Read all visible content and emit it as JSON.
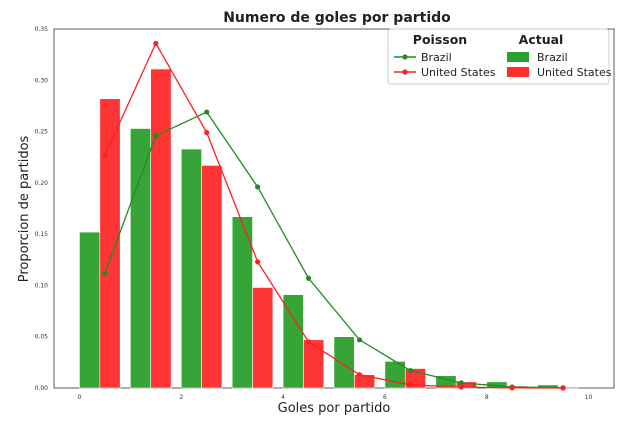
{
  "chart_data": {
    "type": "bar",
    "title": "Numero de goles por partido",
    "xlabel": "Goles por partido",
    "ylabel": "Proporcion de partidos",
    "xlim": [
      -0.5,
      10.5
    ],
    "ylim": [
      0,
      0.35
    ],
    "x_ticks": [
      0,
      2,
      4,
      6,
      8,
      10
    ],
    "y_ticks": [
      0.0,
      0.05,
      0.1,
      0.15,
      0.2,
      0.25,
      0.3,
      0.35
    ],
    "grid": false,
    "legend_position": "top-right",
    "legend": {
      "poisson_title": "Poisson",
      "actual_title": "Actual"
    },
    "bar_series": [
      {
        "name": "Brazil",
        "group": "Actual",
        "color": "#2ca02c",
        "x": [
          0,
          1,
          2,
          3,
          4,
          5,
          6,
          7,
          8,
          9
        ],
        "values": [
          0.152,
          0.253,
          0.233,
          0.167,
          0.091,
          0.05,
          0.026,
          0.012,
          0.006,
          0.003
        ]
      },
      {
        "name": "United States",
        "group": "Actual",
        "color": "#ff2a2a",
        "x": [
          0,
          1,
          2,
          3,
          4,
          5,
          6,
          7,
          8,
          9
        ],
        "values": [
          0.282,
          0.311,
          0.217,
          0.098,
          0.047,
          0.013,
          0.019,
          0.006,
          0.002,
          0.001
        ]
      }
    ],
    "line_series": [
      {
        "name": "Brazil",
        "group": "Poisson",
        "color": "#228b22",
        "x": [
          0,
          1,
          2,
          3,
          4,
          5,
          6,
          7,
          8,
          9
        ],
        "values": [
          0.112,
          0.246,
          0.269,
          0.196,
          0.107,
          0.047,
          0.017,
          0.005,
          0.001,
          0.0003
        ]
      },
      {
        "name": "United States",
        "group": "Poisson",
        "color": "#ff2020",
        "x": [
          0,
          1,
          2,
          3,
          4,
          5,
          6,
          7,
          8,
          9
        ],
        "values": [
          0.227,
          0.336,
          0.249,
          0.123,
          0.045,
          0.013,
          0.003,
          0.001,
          0.0001,
          2e-05
        ]
      }
    ]
  }
}
